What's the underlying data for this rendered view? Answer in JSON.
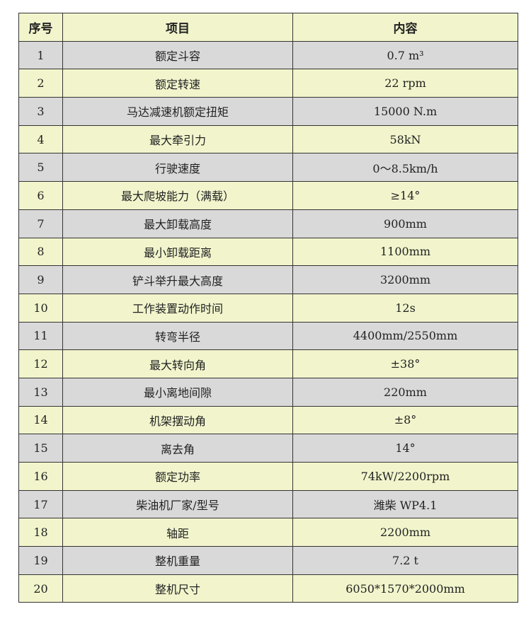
{
  "colors": {
    "header_bg": "#f2f5cc",
    "row_gray": "#d9d9d9",
    "row_yellow": "#f2f5cc",
    "border": "#333333"
  },
  "headers": [
    "序号",
    "项目",
    "内容"
  ],
  "rows": [
    [
      "1",
      "额定斗容",
      "0.7 m³"
    ],
    [
      "2",
      "额定转速",
      "22 rpm"
    ],
    [
      "3",
      "马达减速机额定扭矩",
      "15000 N.m"
    ],
    [
      "4",
      "最大牵引力",
      "58kN"
    ],
    [
      "5",
      "行驶速度",
      "0～8.5km/h"
    ],
    [
      "6",
      "最大爬坡能力（满载）",
      "≥14°"
    ],
    [
      "7",
      "最大卸载高度",
      "900mm"
    ],
    [
      "8",
      "最小卸载距离",
      "1100mm"
    ],
    [
      "9",
      "铲斗举升最大高度",
      "3200mm"
    ],
    [
      "10",
      "工作装置动作时间",
      "12s"
    ],
    [
      "11",
      "转弯半径",
      "4400mm/2550mm"
    ],
    [
      "12",
      "最大转向角",
      "±38°"
    ],
    [
      "13",
      "最小离地间隙",
      "220mm"
    ],
    [
      "14",
      "机架摆动角",
      "±8°"
    ],
    [
      "15",
      "离去角",
      "14°"
    ],
    [
      "16",
      "额定功率",
      "74kW/2200rpm"
    ],
    [
      "17",
      "柴油机厂家/型号",
      "潍柴 WP4.1"
    ],
    [
      "18",
      "轴距",
      "2200mm"
    ],
    [
      "19",
      "整机重量",
      "7.2 t"
    ],
    [
      "20",
      "整机尺寸",
      "6050*1570*2000mm"
    ]
  ]
}
